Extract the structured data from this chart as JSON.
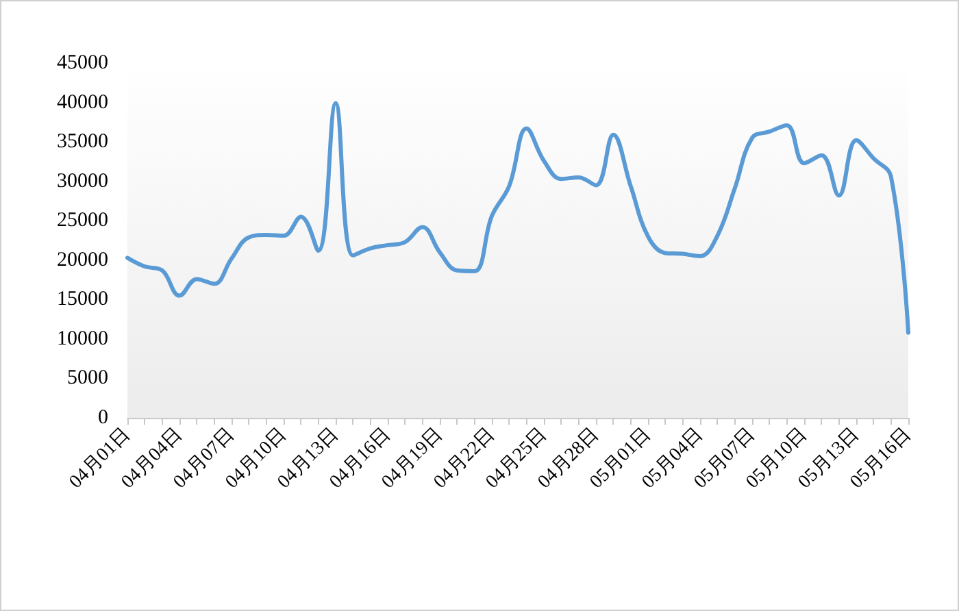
{
  "chart_data": {
    "type": "line",
    "categories": [
      "04月01日",
      null,
      null,
      "04月04日",
      null,
      null,
      "04月07日",
      null,
      null,
      "04月10日",
      null,
      null,
      "04月13日",
      null,
      null,
      "04月16日",
      null,
      null,
      "04月19日",
      null,
      null,
      "04月22日",
      null,
      null,
      "04月25日",
      null,
      null,
      "04月28日",
      null,
      null,
      "05月01日",
      null,
      null,
      "05月04日",
      null,
      null,
      "05月07日",
      null,
      null,
      "05月10日",
      null,
      null,
      "05月13日",
      null,
      null,
      "05月16日"
    ],
    "series": [
      {
        "color": "#5b9bd5",
        "values": [
          20300,
          19200,
          18700,
          15500,
          17600,
          17000,
          20200,
          22900,
          23200,
          23100,
          25500,
          21200,
          39900,
          20600,
          21500,
          21900,
          22300,
          24200,
          21000,
          18700,
          18600,
          25600,
          29400,
          36700,
          32600,
          30300,
          30500,
          29500,
          35900,
          29400,
          23000,
          20900,
          20800,
          20500,
          23100,
          29100,
          35500,
          36300,
          37100,
          32300,
          33300,
          28200,
          35200,
          32900,
          30600,
          10800
        ]
      }
    ],
    "ylim": [
      0,
      45000
    ],
    "yticks": [
      0,
      5000,
      10000,
      15000,
      20000,
      25000,
      30000,
      35000,
      40000,
      45000
    ],
    "grid": false,
    "marker": "none",
    "line_style": "solid"
  }
}
